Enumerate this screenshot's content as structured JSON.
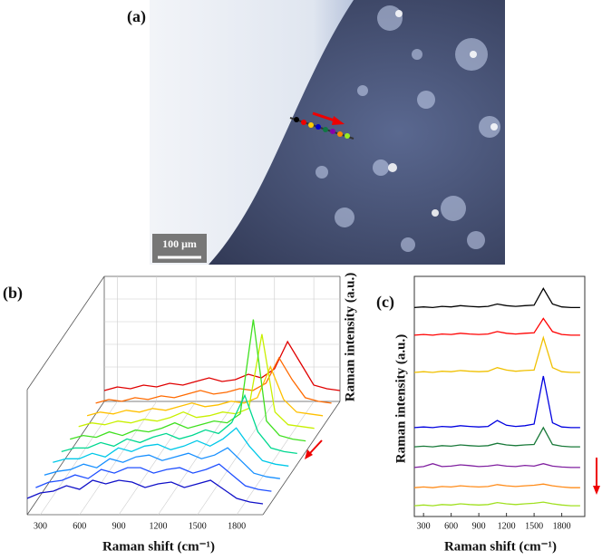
{
  "panel_a": {
    "label": "(a)",
    "scale_bar": "100 μm"
  },
  "chart_data": [
    {
      "type": "waterfall",
      "label": "(b)",
      "x_label": "Raman shift (cm⁻¹)",
      "y_label": "Raman intensity (a.u.)",
      "x": [
        200,
        300,
        400,
        500,
        600,
        700,
        800,
        900,
        1000,
        1100,
        1200,
        1300,
        1400,
        1500,
        1600,
        1700,
        1800,
        1900,
        2000
      ],
      "xlim": [
        200,
        2000
      ],
      "xticks": [
        300,
        600,
        900,
        1200,
        1500,
        1800
      ],
      "ylim": [
        0,
        100
      ],
      "grid": true,
      "series": [
        {
          "color": "#e00000",
          "values": [
            3,
            5,
            4,
            6,
            5,
            7,
            6,
            8,
            10,
            8,
            9,
            12,
            10,
            15,
            30,
            18,
            6,
            4,
            3
          ]
        },
        {
          "color": "#ff6a00",
          "values": [
            3,
            5,
            4,
            6,
            5,
            7,
            6,
            8,
            10,
            8,
            9,
            11,
            10,
            14,
            28,
            16,
            6,
            4,
            3
          ]
        },
        {
          "color": "#ffc000",
          "values": [
            3,
            5,
            4,
            6,
            5,
            7,
            6,
            8,
            10,
            8,
            9,
            11,
            10,
            13,
            30,
            12,
            5,
            4,
            3
          ]
        },
        {
          "color": "#c8f000",
          "values": [
            4,
            6,
            5,
            7,
            6,
            8,
            7,
            9,
            12,
            9,
            10,
            12,
            11,
            14,
            55,
            12,
            5,
            4,
            3
          ]
        },
        {
          "color": "#40e020",
          "values": [
            4,
            6,
            5,
            8,
            6,
            9,
            8,
            10,
            13,
            10,
            12,
            14,
            13,
            18,
            70,
            14,
            6,
            4,
            3
          ]
        },
        {
          "color": "#00d890",
          "values": [
            4,
            6,
            6,
            9,
            7,
            11,
            9,
            12,
            14,
            11,
            13,
            16,
            14,
            20,
            35,
            15,
            6,
            4,
            3
          ]
        },
        {
          "color": "#00c8e8",
          "values": [
            5,
            7,
            7,
            10,
            8,
            13,
            11,
            14,
            15,
            12,
            14,
            17,
            14,
            18,
            24,
            14,
            6,
            4,
            3
          ]
        },
        {
          "color": "#1890ff",
          "values": [
            5,
            7,
            8,
            11,
            9,
            14,
            12,
            15,
            16,
            13,
            15,
            17,
            14,
            16,
            20,
            13,
            6,
            4,
            3
          ]
        },
        {
          "color": "#2050ff",
          "values": [
            5,
            8,
            9,
            12,
            10,
            15,
            13,
            16,
            16,
            13,
            15,
            16,
            13,
            15,
            18,
            12,
            6,
            4,
            3
          ]
        },
        {
          "color": "#1010c8",
          "values": [
            6,
            9,
            10,
            13,
            11,
            16,
            14,
            16,
            15,
            12,
            14,
            15,
            12,
            14,
            16,
            11,
            6,
            4,
            3
          ]
        }
      ]
    },
    {
      "type": "line",
      "label": "(c)",
      "x_label": "Raman shift (cm⁻¹)",
      "y_label": "Raman intensity (a.u.)",
      "x": [
        200,
        300,
        400,
        500,
        600,
        700,
        800,
        900,
        1000,
        1100,
        1200,
        1300,
        1400,
        1500,
        1600,
        1700,
        1800,
        1900,
        2000
      ],
      "xlim": [
        200,
        2050
      ],
      "xticks": [
        300,
        600,
        900,
        1200,
        1500,
        1800
      ],
      "ylim": [
        0,
        100
      ],
      "series": [
        {
          "color": "#000000",
          "values": [
            87,
            87.3,
            87,
            87.5,
            87.3,
            87.8,
            87.5,
            87.3,
            87.5,
            88.5,
            87.8,
            87.5,
            87.8,
            88,
            95,
            88.5,
            87.3,
            87,
            87
          ]
        },
        {
          "color": "#ff0000",
          "values": [
            75.5,
            75.8,
            75.5,
            76,
            75.8,
            76.3,
            76,
            75.8,
            76,
            77,
            76.3,
            76,
            76.3,
            76.5,
            82.5,
            77,
            75.8,
            75.5,
            75.5
          ]
        },
        {
          "color": "#f0c000",
          "values": [
            60,
            60.3,
            60,
            60.5,
            60.3,
            60.8,
            60.5,
            60.3,
            60.5,
            62,
            61,
            60.5,
            60.8,
            61,
            74.5,
            62,
            60.3,
            60,
            60
          ]
        },
        {
          "color": "#0000e0",
          "values": [
            37,
            37.3,
            37,
            37.5,
            37.3,
            37.8,
            37.5,
            37.3,
            37.5,
            40,
            38,
            37.5,
            37.8,
            38.5,
            58.5,
            39,
            37.3,
            37,
            37
          ]
        },
        {
          "color": "#1a7a3a",
          "values": [
            29,
            29.3,
            29,
            29.5,
            29.3,
            29.8,
            29.5,
            29.3,
            29.5,
            30.5,
            29.8,
            29.5,
            29.8,
            30,
            37,
            30,
            29.3,
            29,
            29
          ]
        },
        {
          "color": "#8020a0",
          "values": [
            20.4,
            20.8,
            22,
            20.8,
            21,
            21.5,
            21.2,
            20.8,
            21,
            21.5,
            21,
            20.8,
            21.3,
            21,
            22,
            21,
            20.6,
            20.4,
            20.4
          ]
        },
        {
          "color": "#ff8c1a",
          "values": [
            12,
            12.3,
            12,
            12.5,
            12.3,
            12.8,
            12.5,
            12.3,
            12.5,
            13.3,
            12.8,
            12.5,
            12.8,
            13,
            13.5,
            12.8,
            12.3,
            12,
            12
          ]
        },
        {
          "color": "#a0e020",
          "values": [
            4.5,
            4.8,
            4.5,
            5,
            4.8,
            5.3,
            5,
            4.8,
            5,
            5.8,
            5.3,
            5,
            5.3,
            5.5,
            6,
            5.3,
            4.8,
            4.5,
            4.5
          ]
        }
      ]
    }
  ]
}
